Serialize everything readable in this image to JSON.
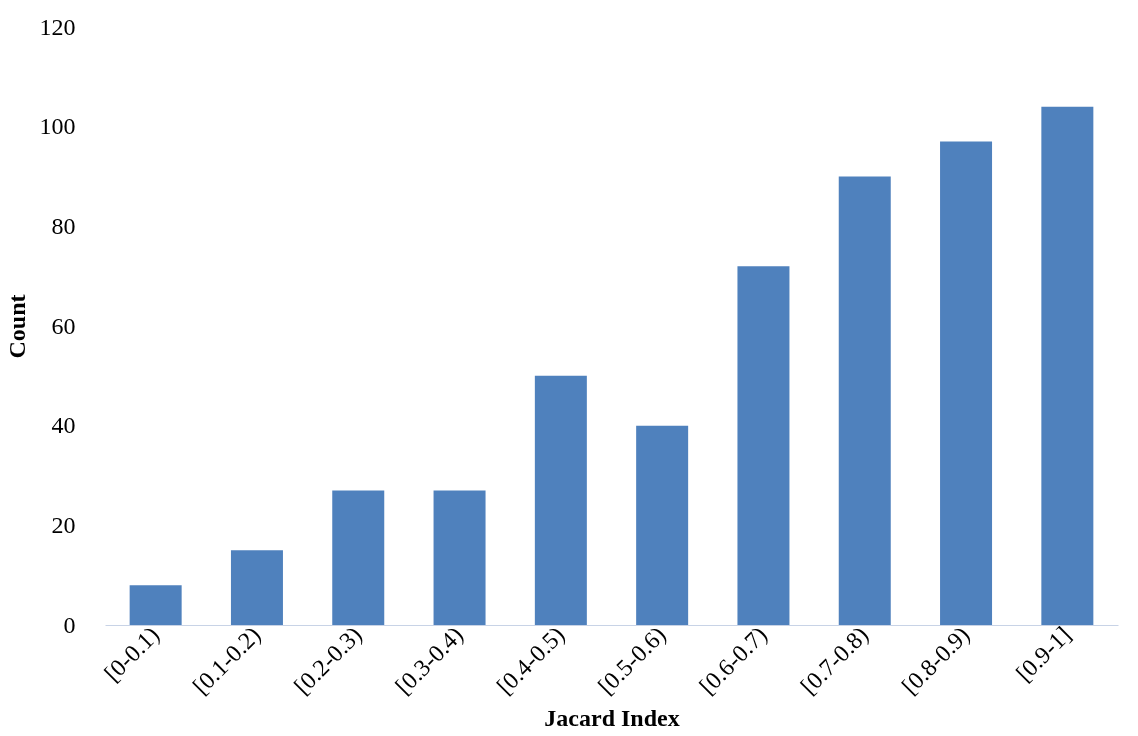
{
  "chart_data": {
    "type": "bar",
    "xlabel": "Jacard Index",
    "ylabel": "Count",
    "categories": [
      "[0-0.1)",
      "[0.1-0.2)",
      "[0.2-0.3)",
      "[0.3-0.4)",
      "[0.4-0.5)",
      "[0.5-0.6)",
      "[0.6-0.7)",
      "[0.7-0.8)",
      "[0.8-0.9)",
      "[0.9-1]"
    ],
    "values": [
      8,
      15,
      27,
      27,
      50,
      40,
      72,
      90,
      97,
      104
    ],
    "color": "#4f81bd",
    "ylim": [
      0,
      120
    ],
    "yticks": [
      0,
      20,
      40,
      60,
      80,
      100,
      120
    ],
    "grid": false
  }
}
